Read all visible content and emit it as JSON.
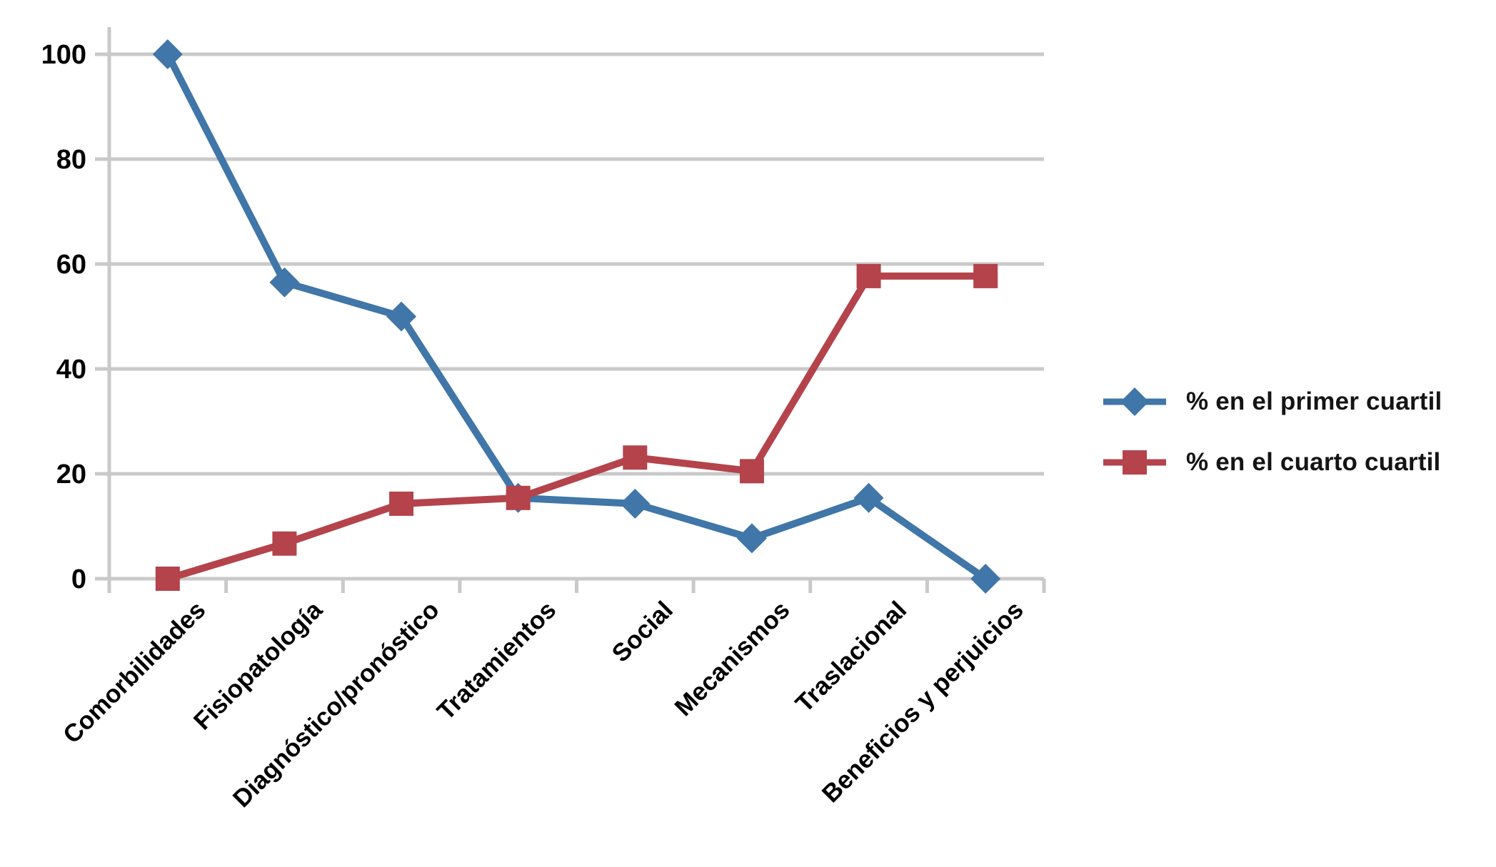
{
  "chart_data": {
    "type": "line",
    "title": "",
    "xlabel": "",
    "ylabel": "",
    "categories": [
      "Comorbilidades",
      "Fisiopatología",
      "Diagnóstico/pronóstico",
      "Tratamientos",
      "Social",
      "Mecanismos",
      "Traslacional",
      "Beneficios y perjuicios"
    ],
    "series": [
      {
        "name": "% en el primer cuartil",
        "marker": "diamond",
        "color": "#4076A8",
        "values": [
          100,
          56.5,
          50,
          15.4,
          14.3,
          7.7,
          15.4,
          0
        ]
      },
      {
        "name": "% en el cuarto cuartil",
        "marker": "square",
        "color": "#B4434B",
        "values": [
          0,
          6.7,
          14.3,
          15.4,
          23.1,
          20.5,
          57.7,
          57.7
        ]
      }
    ],
    "ylim": [
      0,
      100
    ],
    "y_ticks": [
      0,
      20,
      40,
      60,
      80,
      100
    ],
    "grid": "horizontal",
    "gridline_color": "#C9C9C9",
    "axis_color": "#C9C9C9",
    "label_color": "#000000",
    "legend_position": "right",
    "background": "#FFFFFF"
  }
}
